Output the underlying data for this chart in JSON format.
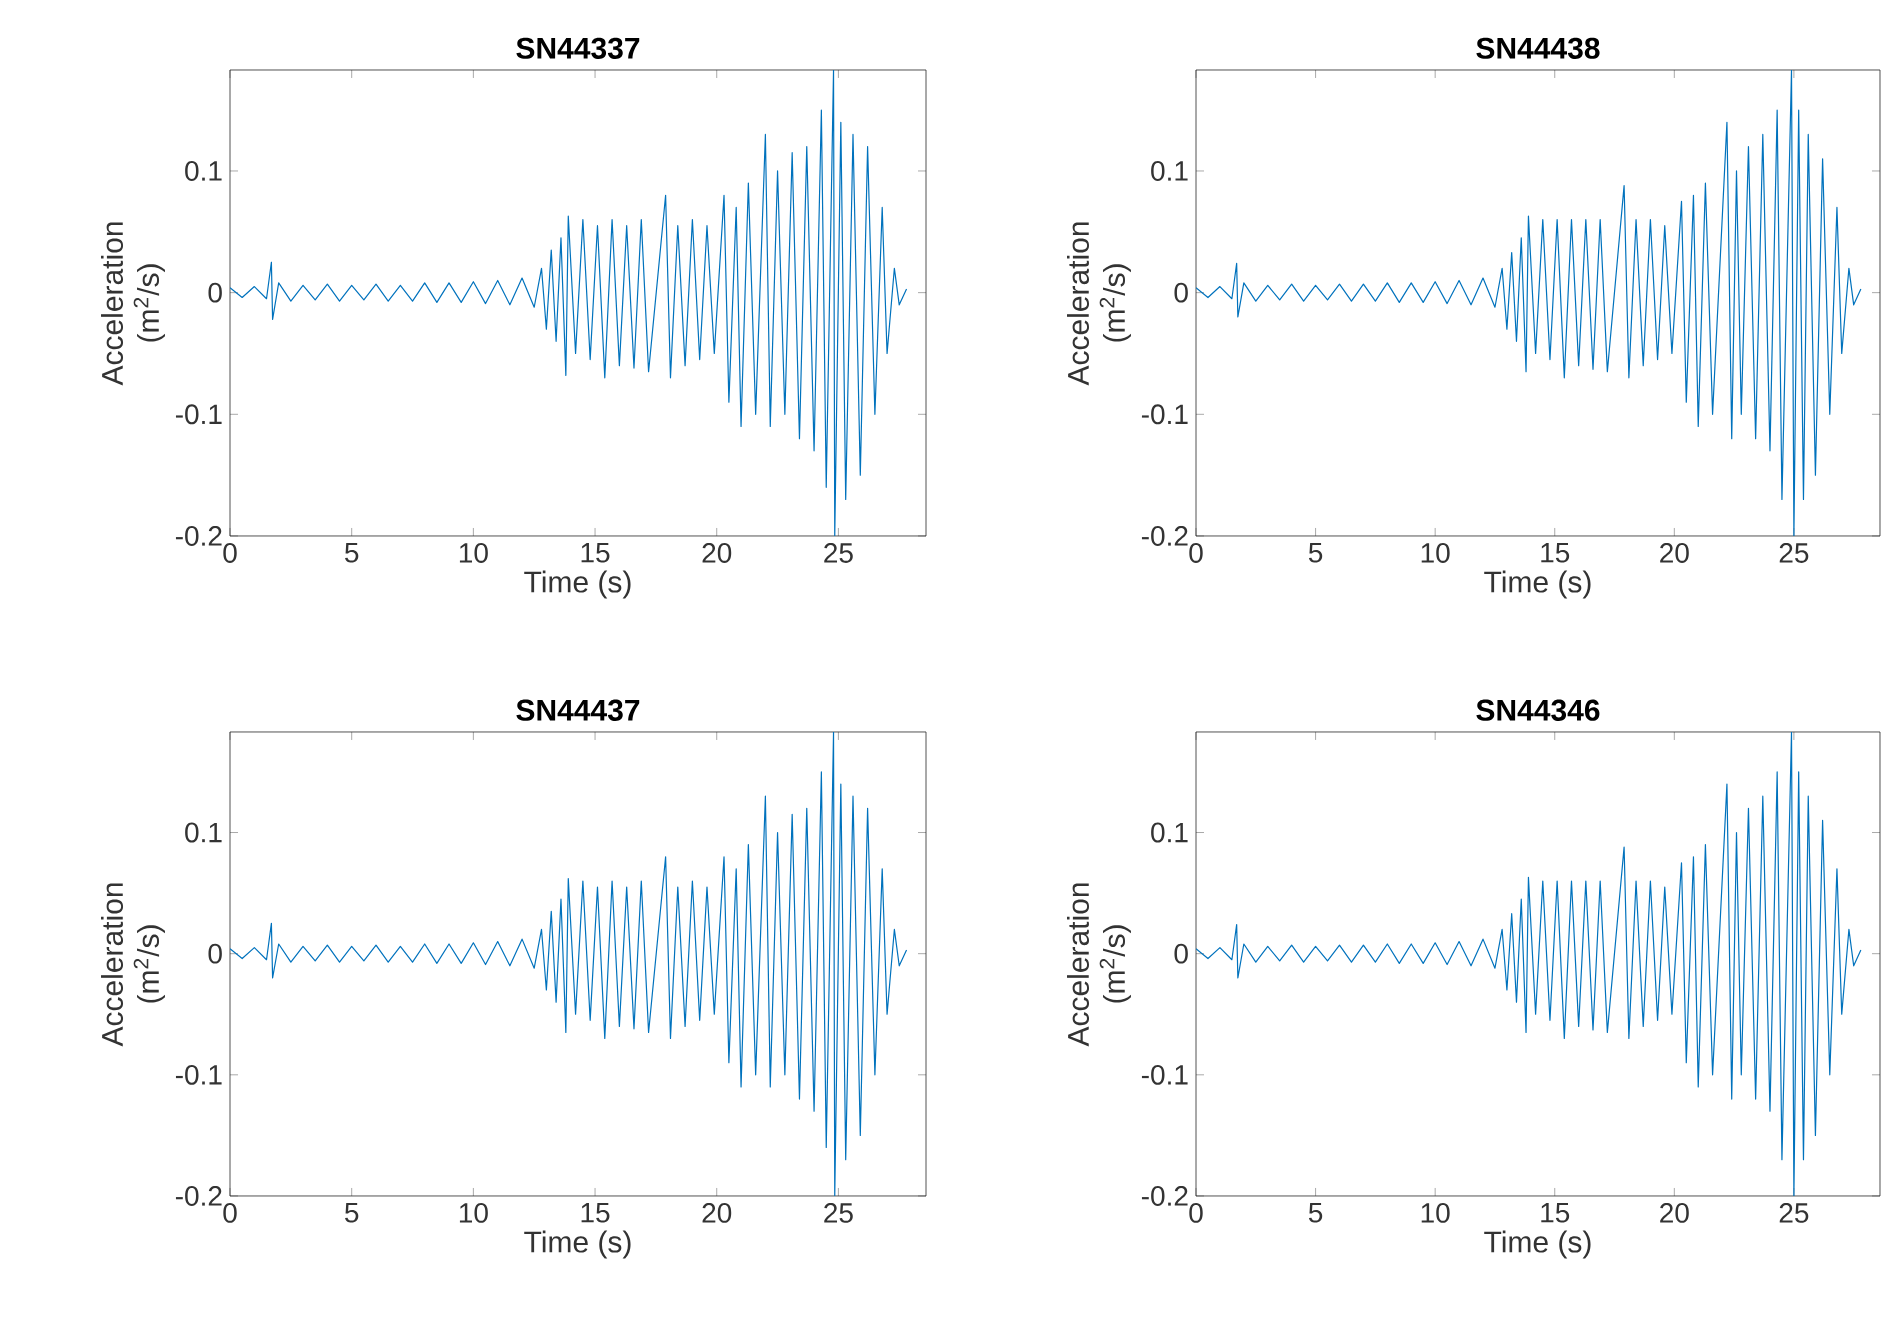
{
  "chart_data": [
    {
      "type": "line",
      "title": "SN44337",
      "xlabel": "Time (s)",
      "ylabel": "Acceleration (m$^{2}$/s)",
      "xlim": [
        0,
        28.6
      ],
      "ylim": [
        -0.2,
        0.183
      ],
      "xticks": [
        0,
        5,
        10,
        15,
        20,
        25
      ],
      "yticks": [
        -0.2,
        -0.1,
        0,
        0.1
      ],
      "series": [
        {
          "color": "#0072bd",
          "x": [
            0,
            0.5,
            1,
            1.5,
            1.7,
            1.75,
            2,
            2.5,
            3,
            3.5,
            4,
            4.5,
            5,
            5.5,
            6,
            6.5,
            7,
            7.5,
            8,
            8.5,
            9,
            9.5,
            10,
            10.5,
            11,
            11.5,
            12,
            12.5,
            12.8,
            13.0,
            13.2,
            13.4,
            13.6,
            13.8,
            13.9,
            14.2,
            14.5,
            14.8,
            15.1,
            15.4,
            15.7,
            16,
            16.3,
            16.6,
            16.9,
            17.2,
            17.9,
            18.1,
            18.4,
            18.7,
            19,
            19.3,
            19.6,
            19.9,
            20.3,
            20.5,
            20.8,
            21.0,
            21.3,
            21.6,
            22,
            22.2,
            22.5,
            22.8,
            23.1,
            23.4,
            23.7,
            24,
            24.3,
            24.5,
            24.8,
            24.85,
            25.1,
            25.3,
            25.6,
            25.9,
            26.2,
            26.5,
            26.8,
            27.0,
            27.3,
            27.5,
            27.8
          ],
          "values": [
            0.004,
            -0.004,
            0.005,
            -0.005,
            0.025,
            -0.022,
            0.008,
            -0.007,
            0.006,
            -0.006,
            0.007,
            -0.007,
            0.006,
            -0.006,
            0.007,
            -0.007,
            0.006,
            -0.007,
            0.008,
            -0.008,
            0.008,
            -0.008,
            0.009,
            -0.009,
            0.01,
            -0.01,
            0.012,
            -0.012,
            0.02,
            -0.03,
            0.035,
            -0.04,
            0.045,
            -0.068,
            0.063,
            -0.05,
            0.06,
            -0.055,
            0.055,
            -0.07,
            0.06,
            -0.06,
            0.055,
            -0.062,
            0.06,
            -0.065,
            0.08,
            -0.07,
            0.055,
            -0.06,
            0.06,
            -0.055,
            0.055,
            -0.05,
            0.08,
            -0.09,
            0.07,
            -0.11,
            0.09,
            -0.1,
            0.13,
            -0.11,
            0.1,
            -0.1,
            0.115,
            -0.12,
            0.12,
            -0.13,
            0.15,
            -0.16,
            0.183,
            -0.2,
            0.14,
            -0.17,
            0.13,
            -0.15,
            0.12,
            -0.1,
            0.07,
            -0.05,
            0.02,
            -0.01,
            0.003
          ]
        }
      ]
    },
    {
      "type": "line",
      "title": "SN44438",
      "xlabel": "Time (s)",
      "ylabel": "Acceleration (m$^{2}$/s)",
      "xlim": [
        0,
        28.6
      ],
      "ylim": [
        -0.2,
        0.183
      ],
      "xticks": [
        0,
        5,
        10,
        15,
        20,
        25
      ],
      "yticks": [
        -0.2,
        -0.1,
        0,
        0.1
      ],
      "series": [
        {
          "color": "#0072bd",
          "x": [
            0,
            0.5,
            1,
            1.5,
            1.7,
            1.75,
            2,
            2.5,
            3,
            3.5,
            4,
            4.5,
            5,
            5.5,
            6,
            6.5,
            7,
            7.5,
            8,
            8.5,
            9,
            9.5,
            10,
            10.5,
            11,
            11.5,
            12,
            12.5,
            12.8,
            13.0,
            13.2,
            13.4,
            13.6,
            13.8,
            13.9,
            14.2,
            14.5,
            14.8,
            15.1,
            15.4,
            15.7,
            16,
            16.3,
            16.6,
            16.9,
            17.2,
            17.9,
            18.1,
            18.4,
            18.7,
            19,
            19.3,
            19.6,
            19.9,
            20.3,
            20.5,
            20.8,
            21.0,
            21.3,
            21.6,
            22.2,
            22.4,
            22.6,
            22.8,
            23.1,
            23.4,
            23.7,
            24,
            24.3,
            24.5,
            24.9,
            25.0,
            25.2,
            25.4,
            25.6,
            25.9,
            26.2,
            26.5,
            26.8,
            27.0,
            27.3,
            27.5,
            27.8
          ],
          "values": [
            0.004,
            -0.004,
            0.005,
            -0.005,
            0.024,
            -0.02,
            0.008,
            -0.007,
            0.006,
            -0.006,
            0.007,
            -0.007,
            0.006,
            -0.006,
            0.007,
            -0.007,
            0.007,
            -0.007,
            0.008,
            -0.008,
            0.008,
            -0.008,
            0.009,
            -0.009,
            0.01,
            -0.01,
            0.012,
            -0.012,
            0.02,
            -0.03,
            0.033,
            -0.04,
            0.045,
            -0.065,
            0.063,
            -0.05,
            0.06,
            -0.055,
            0.06,
            -0.07,
            0.06,
            -0.06,
            0.06,
            -0.063,
            0.06,
            -0.065,
            0.088,
            -0.07,
            0.06,
            -0.06,
            0.06,
            -0.055,
            0.055,
            -0.05,
            0.075,
            -0.09,
            0.08,
            -0.11,
            0.09,
            -0.1,
            0.14,
            -0.12,
            0.1,
            -0.1,
            0.12,
            -0.12,
            0.13,
            -0.13,
            0.15,
            -0.17,
            0.183,
            -0.2,
            0.15,
            -0.17,
            0.13,
            -0.15,
            0.11,
            -0.1,
            0.07,
            -0.05,
            0.02,
            -0.01,
            0.003
          ]
        }
      ]
    },
    {
      "type": "line",
      "title": "SN44437",
      "xlabel": "Time (s)",
      "ylabel": "Acceleration (m$^{2}$/s)",
      "xlim": [
        0,
        28.6
      ],
      "ylim": [
        -0.2,
        0.183
      ],
      "xticks": [
        0,
        5,
        10,
        15,
        20,
        25
      ],
      "yticks": [
        -0.2,
        -0.1,
        0,
        0.1
      ],
      "series": [
        {
          "color": "#0072bd",
          "x": [
            0,
            0.5,
            1,
            1.5,
            1.7,
            1.75,
            2,
            2.5,
            3,
            3.5,
            4,
            4.5,
            5,
            5.5,
            6,
            6.5,
            7,
            7.5,
            8,
            8.5,
            9,
            9.5,
            10,
            10.5,
            11,
            11.5,
            12,
            12.5,
            12.8,
            13.0,
            13.2,
            13.4,
            13.6,
            13.8,
            13.9,
            14.2,
            14.5,
            14.8,
            15.1,
            15.4,
            15.7,
            16,
            16.3,
            16.6,
            16.9,
            17.2,
            17.9,
            18.1,
            18.4,
            18.7,
            19,
            19.3,
            19.6,
            19.9,
            20.3,
            20.5,
            20.8,
            21.0,
            21.3,
            21.6,
            22,
            22.2,
            22.5,
            22.8,
            23.1,
            23.4,
            23.7,
            24,
            24.3,
            24.5,
            24.8,
            24.85,
            25.1,
            25.3,
            25.6,
            25.9,
            26.2,
            26.5,
            26.8,
            27.0,
            27.3,
            27.5,
            27.8
          ],
          "values": [
            0.004,
            -0.004,
            0.005,
            -0.005,
            0.025,
            -0.02,
            0.008,
            -0.007,
            0.006,
            -0.006,
            0.007,
            -0.007,
            0.006,
            -0.006,
            0.007,
            -0.007,
            0.006,
            -0.007,
            0.008,
            -0.008,
            0.008,
            -0.008,
            0.009,
            -0.009,
            0.01,
            -0.01,
            0.012,
            -0.012,
            0.02,
            -0.03,
            0.035,
            -0.04,
            0.045,
            -0.065,
            0.062,
            -0.05,
            0.06,
            -0.055,
            0.055,
            -0.07,
            0.06,
            -0.06,
            0.055,
            -0.062,
            0.06,
            -0.065,
            0.08,
            -0.07,
            0.055,
            -0.06,
            0.06,
            -0.055,
            0.055,
            -0.05,
            0.08,
            -0.09,
            0.07,
            -0.11,
            0.09,
            -0.1,
            0.13,
            -0.11,
            0.1,
            -0.1,
            0.115,
            -0.12,
            0.12,
            -0.13,
            0.15,
            -0.16,
            0.183,
            -0.2,
            0.14,
            -0.17,
            0.13,
            -0.15,
            0.12,
            -0.1,
            0.07,
            -0.05,
            0.02,
            -0.01,
            0.003
          ]
        }
      ]
    },
    {
      "type": "line",
      "title": "SN44346",
      "xlabel": "Time (s)",
      "ylabel": "Acceleration (m$^{2}$/s)",
      "xlim": [
        0,
        28.6
      ],
      "ylim": [
        -0.2,
        0.183
      ],
      "xticks": [
        0,
        5,
        10,
        15,
        20,
        25
      ],
      "yticks": [
        -0.2,
        -0.1,
        0,
        0.1
      ],
      "series": [
        {
          "color": "#0072bd",
          "x": [
            0,
            0.5,
            1,
            1.5,
            1.7,
            1.75,
            2,
            2.5,
            3,
            3.5,
            4,
            4.5,
            5,
            5.5,
            6,
            6.5,
            7,
            7.5,
            8,
            8.5,
            9,
            9.5,
            10,
            10.5,
            11,
            11.5,
            12,
            12.5,
            12.8,
            13.0,
            13.2,
            13.4,
            13.6,
            13.8,
            13.9,
            14.2,
            14.5,
            14.8,
            15.1,
            15.4,
            15.7,
            16,
            16.3,
            16.6,
            16.9,
            17.2,
            17.9,
            18.1,
            18.4,
            18.7,
            19,
            19.3,
            19.6,
            19.9,
            20.3,
            20.5,
            20.8,
            21.0,
            21.3,
            21.6,
            22.2,
            22.4,
            22.6,
            22.8,
            23.1,
            23.4,
            23.7,
            24,
            24.3,
            24.5,
            24.9,
            25.0,
            25.2,
            25.4,
            25.6,
            25.9,
            26.2,
            26.5,
            26.8,
            27.0,
            27.3,
            27.5,
            27.8
          ],
          "values": [
            0.004,
            -0.004,
            0.005,
            -0.005,
            0.024,
            -0.02,
            0.008,
            -0.007,
            0.006,
            -0.006,
            0.007,
            -0.007,
            0.006,
            -0.006,
            0.007,
            -0.007,
            0.007,
            -0.007,
            0.008,
            -0.008,
            0.008,
            -0.008,
            0.009,
            -0.009,
            0.01,
            -0.01,
            0.012,
            -0.012,
            0.02,
            -0.03,
            0.033,
            -0.04,
            0.045,
            -0.065,
            0.063,
            -0.05,
            0.06,
            -0.055,
            0.06,
            -0.07,
            0.06,
            -0.06,
            0.06,
            -0.063,
            0.06,
            -0.065,
            0.088,
            -0.07,
            0.06,
            -0.06,
            0.06,
            -0.055,
            0.055,
            -0.05,
            0.075,
            -0.09,
            0.08,
            -0.11,
            0.09,
            -0.1,
            0.14,
            -0.12,
            0.1,
            -0.1,
            0.12,
            -0.12,
            0.13,
            -0.13,
            0.15,
            -0.17,
            0.183,
            -0.2,
            0.15,
            -0.17,
            0.13,
            -0.15,
            0.11,
            -0.1,
            0.07,
            -0.05,
            0.02,
            -0.01,
            0.003
          ]
        }
      ]
    }
  ]
}
